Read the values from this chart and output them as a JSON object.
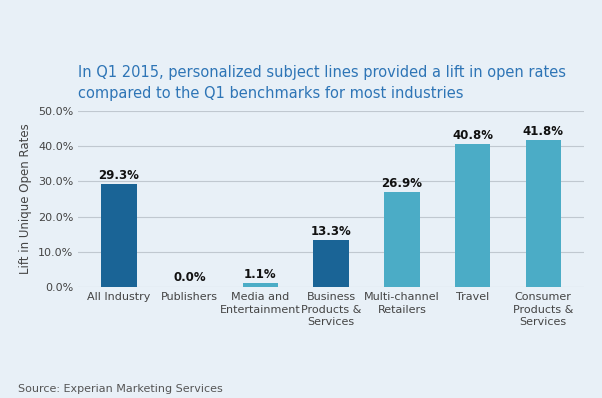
{
  "title": "In Q1 2015, personalized subject lines provided a lift in open rates\ncompared to the Q1 benchmarks for most industries",
  "title_color": "#2e75b6",
  "ylabel": "Lift in Unique Open Rates",
  "source": "Source: Experian Marketing Services",
  "categories": [
    "All Industry",
    "Publishers",
    "Media and\nEntertainment",
    "Business\nProducts &\nServices",
    "Multi-channel\nRetailers",
    "Travel",
    "Consumer\nProducts &\nServices"
  ],
  "values": [
    29.3,
    0.0,
    1.1,
    13.3,
    26.9,
    40.8,
    41.8
  ],
  "labels": [
    "29.3%",
    "0.0%",
    "1.1%",
    "13.3%",
    "26.9%",
    "40.8%",
    "41.8%"
  ],
  "bar_colors": [
    "#1a6496",
    "#1a6496",
    "#4bacc6",
    "#1a6496",
    "#4bacc6",
    "#4bacc6",
    "#4bacc6"
  ],
  "ylim": [
    0,
    50
  ],
  "yticks": [
    0,
    10,
    20,
    30,
    40,
    50
  ],
  "ytick_labels": [
    "0.0%",
    "10.0%",
    "20.0%",
    "30.0%",
    "40.0%",
    "50.0%"
  ],
  "background_color": "#e8f0f7",
  "plot_bg_color": "#e8f0f7",
  "grid_color": "#c0c8d0",
  "bar_width": 0.5,
  "title_fontsize": 10.5,
  "label_fontsize": 8.5,
  "tick_fontsize": 8,
  "ylabel_fontsize": 8.5,
  "source_fontsize": 8
}
